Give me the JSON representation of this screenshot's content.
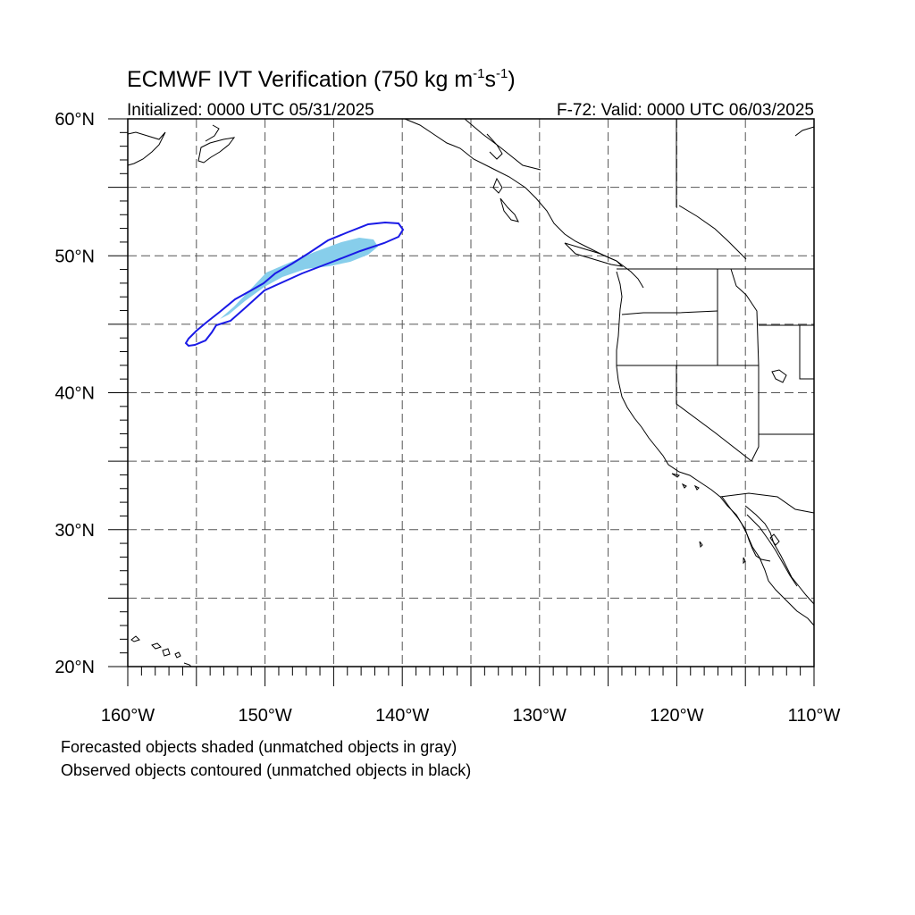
{
  "title": {
    "main": "ECMWF IVT Verification (750 kg m",
    "sup1": "-1",
    "mid": "s",
    "sup2": "-1",
    "close": ")"
  },
  "subtitle_left": "Initialized: 0000 UTC 05/31/2025",
  "subtitle_right": "F-72: Valid: 0000 UTC 06/03/2025",
  "lat_labels": [
    {
      "text": "60°N",
      "lat": 60
    },
    {
      "text": "50°N",
      "lat": 50
    },
    {
      "text": "40°N",
      "lat": 40
    },
    {
      "text": "30°N",
      "lat": 30
    },
    {
      "text": "20°N",
      "lat": 20
    }
  ],
  "lon_labels": [
    {
      "text": "160°W",
      "lon": -160
    },
    {
      "text": "150°W",
      "lon": -150
    },
    {
      "text": "140°W",
      "lon": -140
    },
    {
      "text": "130°W",
      "lon": -130
    },
    {
      "text": "120°W",
      "lon": -120
    },
    {
      "text": "110°W",
      "lon": -110
    }
  ],
  "extent": {
    "lon": [
      -160,
      -110
    ],
    "lat": [
      20,
      60
    ]
  },
  "gridlines": {
    "lon_step": 5,
    "lat_step": 5,
    "style": "dashed"
  },
  "objects": {
    "forecast_fill_color": "#87ceeb",
    "observed_contour_color": "#1a1ae6"
  },
  "footnotes": [
    "Forecasted objects shaded (unmatched objects in gray)",
    "Observed objects contoured (unmatched objects in black)"
  ]
}
